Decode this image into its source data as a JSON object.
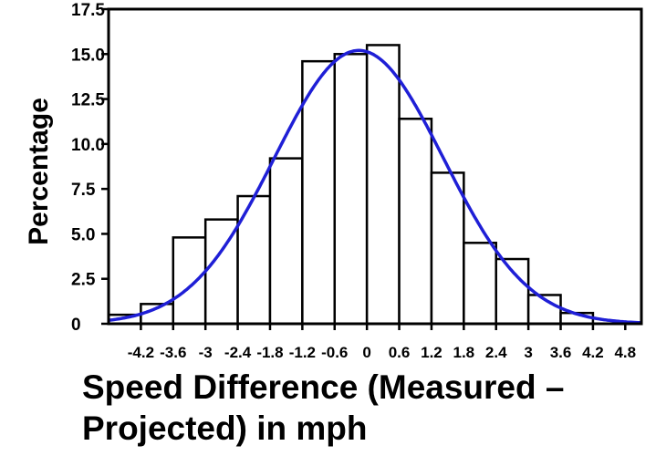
{
  "chart_data": {
    "type": "bar",
    "title": "",
    "xlabel": "Speed Difference (Measured – Projected) in mph",
    "ylabel": "Percentage",
    "ylim": [
      0,
      17.5
    ],
    "xlim": [
      -4.8,
      5.1
    ],
    "y_ticks": [
      "0",
      "2.5",
      "5.0",
      "7.5",
      "10.0",
      "12.5",
      "15.0",
      "17.5"
    ],
    "x_ticks": [
      "-4.2",
      "-3.6",
      "-3",
      "-2.4",
      "-1.8",
      "-1.2",
      "-0.6",
      "0",
      "0.6",
      "1.2",
      "1.8",
      "2.4",
      "3",
      "3.6",
      "4.2",
      "4.8"
    ],
    "bins": [
      {
        "from": -4.8,
        "to": -4.2,
        "value": 0.5
      },
      {
        "from": -4.2,
        "to": -3.6,
        "value": 1.1
      },
      {
        "from": -3.6,
        "to": -3.0,
        "value": 4.8
      },
      {
        "from": -3.0,
        "to": -2.4,
        "value": 5.8
      },
      {
        "from": -2.4,
        "to": -1.8,
        "value": 7.1
      },
      {
        "from": -1.8,
        "to": -1.2,
        "value": 9.2
      },
      {
        "from": -1.2,
        "to": -0.6,
        "value": 14.6
      },
      {
        "from": -0.6,
        "to": 0.0,
        "value": 15.0
      },
      {
        "from": 0.0,
        "to": 0.6,
        "value": 15.5
      },
      {
        "from": 0.6,
        "to": 1.2,
        "value": 11.4
      },
      {
        "from": 1.2,
        "to": 1.8,
        "value": 8.4
      },
      {
        "from": 1.8,
        "to": 2.4,
        "value": 4.5
      },
      {
        "from": 2.4,
        "to": 3.0,
        "value": 3.6
      },
      {
        "from": 3.0,
        "to": 3.6,
        "value": 1.6
      },
      {
        "from": 3.6,
        "to": 4.2,
        "value": 0.6
      }
    ],
    "fit_curve": {
      "type": "normal",
      "mean": -0.15,
      "sd": 1.57,
      "peak": 15.2,
      "color": "#1f1fd6"
    },
    "bar_fill": "#ffffff",
    "bar_stroke": "#000000",
    "grid": false
  }
}
